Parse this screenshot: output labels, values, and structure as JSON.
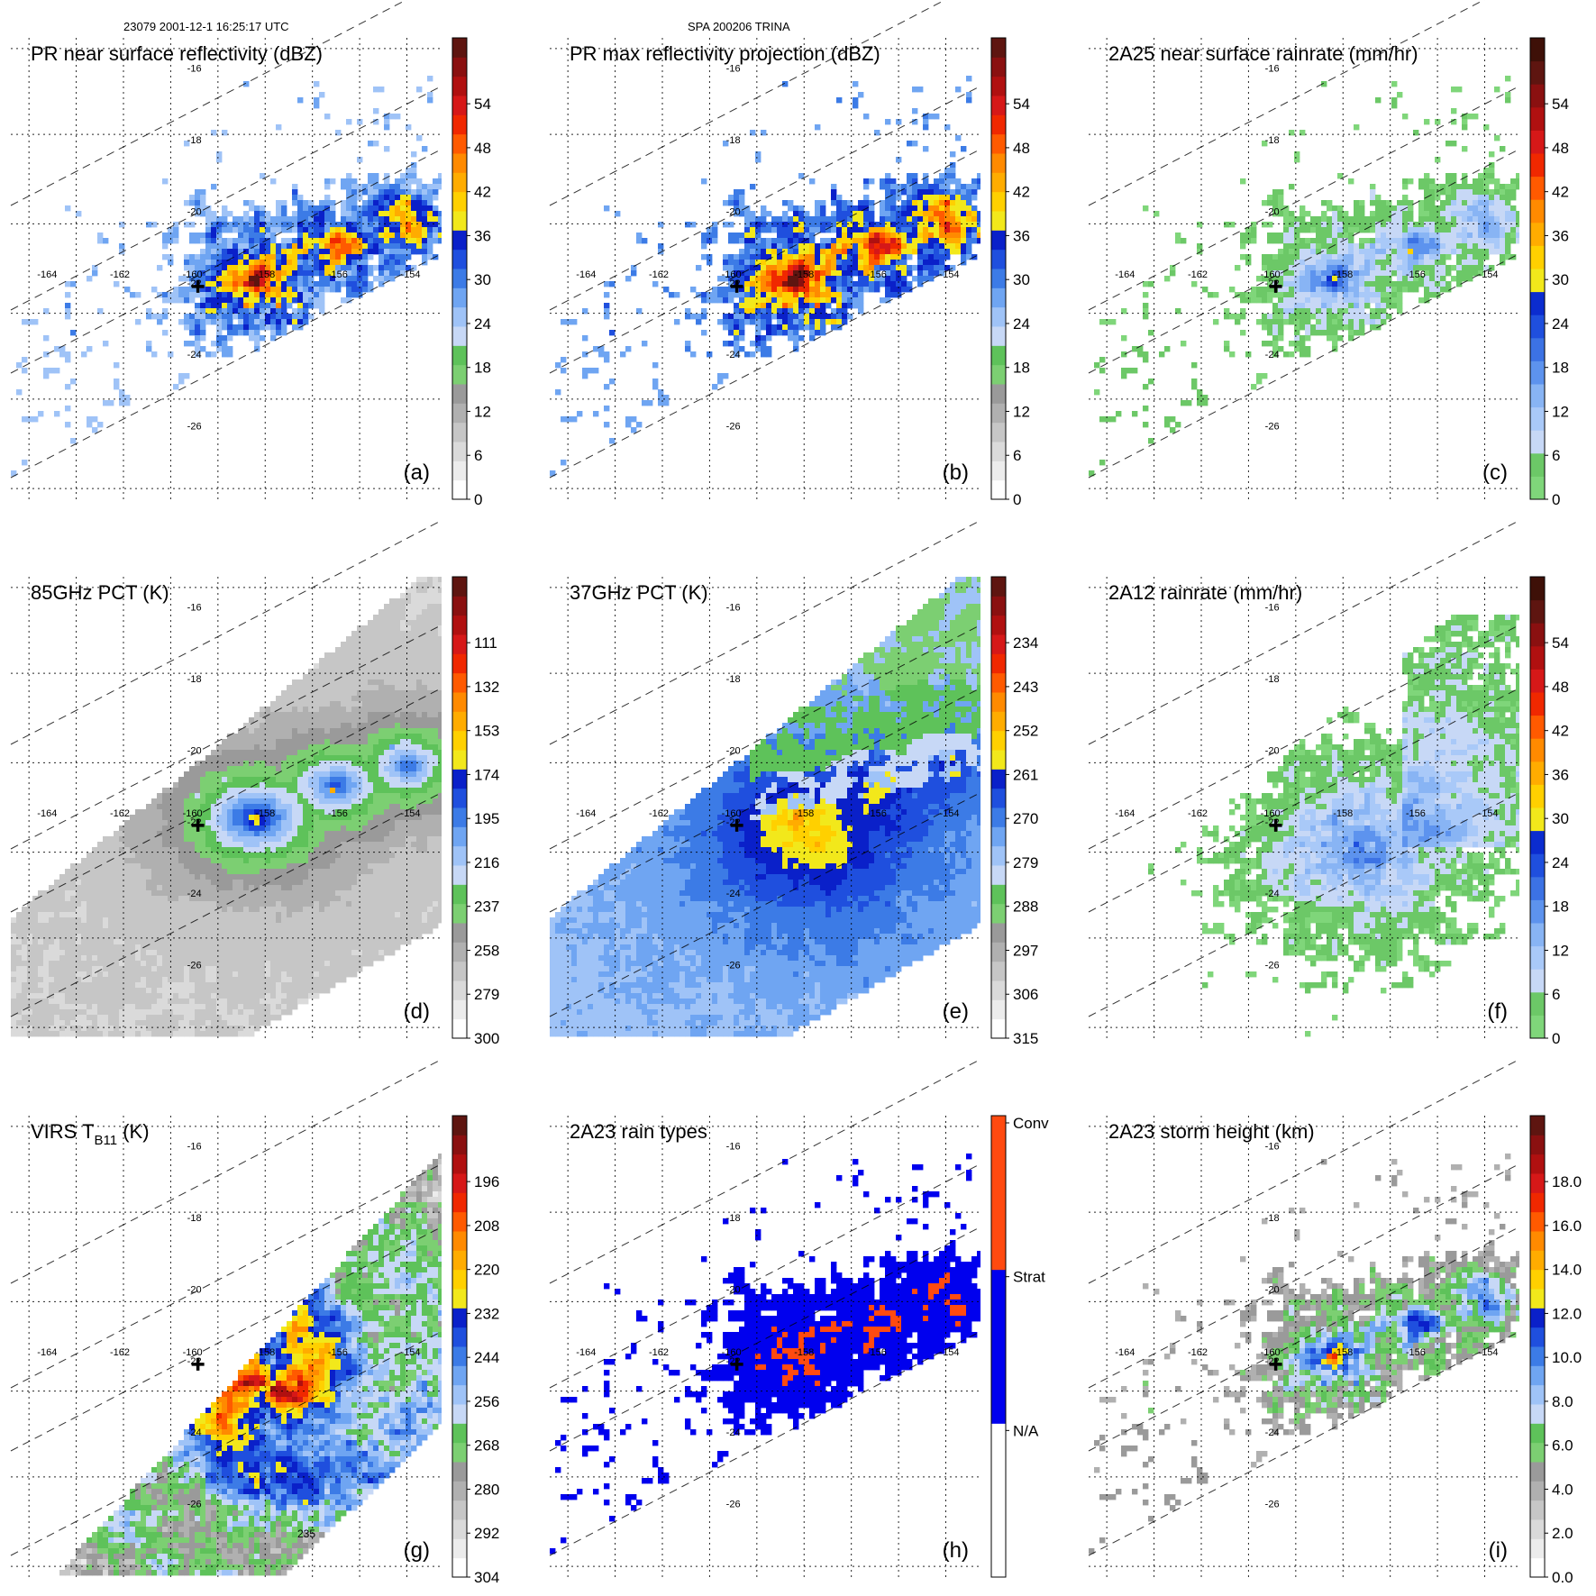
{
  "header": {
    "left": "23079 2001-12-1 16:25:17 UTC",
    "center": "SPA 200206 TRINA"
  },
  "colors": {
    "grid": "#000000",
    "marker": "#000000",
    "contour": "#000000"
  },
  "chart_data": [
    {
      "type": "heatmap",
      "title": "PR near surface reflectivity (dBZ)",
      "panel_label": "(a)",
      "swath": "pr",
      "field": "reflectivity",
      "colorbar": {
        "colors": [
          "#ffffff",
          "#ececec",
          "#dadada",
          "#c6c6c6",
          "#b0b0b0",
          "#9a9a9a",
          "#7ccf72",
          "#5ec25a",
          "#c7d8f6",
          "#9fc3f7",
          "#6fa5f2",
          "#3c7be6",
          "#1f4fde",
          "#0a20c9",
          "#f2e81b",
          "#ffd000",
          "#ffac00",
          "#ff8a00",
          "#ff5a00",
          "#f02800",
          "#d61818",
          "#b01010",
          "#8a1010",
          "#5e1510"
        ],
        "tick_labels": [
          "0",
          "6",
          "12",
          "18",
          "24",
          "30",
          "36",
          "42",
          "48",
          "54"
        ]
      }
    },
    {
      "type": "heatmap",
      "title": "PR max reflectivity projection (dBZ)",
      "panel_label": "(b)",
      "swath": "pr",
      "field": "reflectivity_max",
      "colorbar": {
        "colors": [
          "#ffffff",
          "#ececec",
          "#dadada",
          "#c6c6c6",
          "#b0b0b0",
          "#9a9a9a",
          "#7ccf72",
          "#5ec25a",
          "#c7d8f6",
          "#9fc3f7",
          "#6fa5f2",
          "#3c7be6",
          "#1f4fde",
          "#0a20c9",
          "#f2e81b",
          "#ffd000",
          "#ffac00",
          "#ff8a00",
          "#ff5a00",
          "#f02800",
          "#d61818",
          "#b01010",
          "#8a1010",
          "#5e1510"
        ],
        "tick_labels": [
          "0",
          "6",
          "12",
          "18",
          "24",
          "30",
          "36",
          "42",
          "48",
          "54"
        ]
      }
    },
    {
      "type": "heatmap",
      "title": "2A25 near surface rainrate (mm/hr)",
      "panel_label": "(c)",
      "swath": "pr",
      "field": "rainrate",
      "colorbar": {
        "colors": [
          "#7fd67a",
          "#6cc867",
          "#c7d8f6",
          "#a9c9f8",
          "#88b4f4",
          "#5d93ee",
          "#3c72e4",
          "#1f4fde",
          "#0b2ccf",
          "#f2e81b",
          "#ffd000",
          "#ffac00",
          "#ff8a00",
          "#ff5a00",
          "#f02800",
          "#d61818",
          "#b01010",
          "#8a1010",
          "#5e1510",
          "#3e1008"
        ],
        "tick_labels": [
          "0",
          "6",
          "12",
          "18",
          "24",
          "30",
          "36",
          "42",
          "48",
          "54"
        ]
      }
    },
    {
      "type": "heatmap",
      "title": "85GHz PCT (K)",
      "panel_label": "(d)",
      "swath": "tmi",
      "field": "pct85",
      "colorbar": {
        "colors": [
          "#ffffff",
          "#ececec",
          "#dadada",
          "#c6c6c6",
          "#b0b0b0",
          "#9a9a9a",
          "#7ccf72",
          "#5ec25a",
          "#c7d8f6",
          "#9fc3f7",
          "#6fa5f2",
          "#3c7be6",
          "#1f4fde",
          "#0a20c9",
          "#f2e81b",
          "#ffd000",
          "#ffac00",
          "#ff8a00",
          "#ff5a00",
          "#f02800",
          "#d61818",
          "#b01010",
          "#8a1010",
          "#5e1510"
        ],
        "tick_labels": [
          "300",
          "279",
          "258",
          "237",
          "216",
          "195",
          "174",
          "153",
          "132",
          "111"
        ]
      }
    },
    {
      "type": "heatmap",
      "title": "37GHz PCT (K)",
      "panel_label": "(e)",
      "swath": "tmi",
      "field": "pct37",
      "colorbar": {
        "colors": [
          "#ffffff",
          "#ececec",
          "#dadada",
          "#c6c6c6",
          "#b0b0b0",
          "#9a9a9a",
          "#7ccf72",
          "#5ec25a",
          "#c7d8f6",
          "#9fc3f7",
          "#6fa5f2",
          "#3c7be6",
          "#1f4fde",
          "#0a20c9",
          "#f2e81b",
          "#ffd000",
          "#ffac00",
          "#ff8a00",
          "#ff5a00",
          "#f02800",
          "#d61818",
          "#b01010",
          "#8a1010",
          "#5e1510"
        ],
        "tick_labels": [
          "315",
          "306",
          "297",
          "288",
          "279",
          "270",
          "261",
          "252",
          "243",
          "234"
        ]
      }
    },
    {
      "type": "heatmap",
      "title": "2A12 rainrate (mm/hr)",
      "panel_label": "(f)",
      "swath": "tmi",
      "field": "rainrate_tmi",
      "colorbar": {
        "colors": [
          "#7fd67a",
          "#6cc867",
          "#c7d8f6",
          "#a9c9f8",
          "#88b4f4",
          "#5d93ee",
          "#3c72e4",
          "#1f4fde",
          "#0b2ccf",
          "#f2e81b",
          "#ffd000",
          "#ffac00",
          "#ff8a00",
          "#ff5a00",
          "#f02800",
          "#d61818",
          "#b01010",
          "#8a1010",
          "#5e1510",
          "#3e1008"
        ],
        "tick_labels": [
          "0",
          "6",
          "12",
          "18",
          "24",
          "30",
          "36",
          "42",
          "48",
          "54"
        ]
      }
    },
    {
      "type": "heatmap",
      "title": "VIRS T",
      "title_sub": "B11",
      "title_suffix": " (K)",
      "panel_label": "(g)",
      "swath": "virs",
      "field": "tb11",
      "contour_label": "235",
      "colorbar": {
        "colors": [
          "#ffffff",
          "#ececec",
          "#dadada",
          "#c6c6c6",
          "#b0b0b0",
          "#9a9a9a",
          "#7ccf72",
          "#5ec25a",
          "#c7d8f6",
          "#9fc3f7",
          "#6fa5f2",
          "#3c7be6",
          "#1f4fde",
          "#0a20c9",
          "#f2e81b",
          "#ffd000",
          "#ffac00",
          "#ff8a00",
          "#ff5a00",
          "#f02800",
          "#d61818",
          "#b01010",
          "#8a1010",
          "#5e1510"
        ],
        "tick_labels": [
          "304",
          "292",
          "280",
          "268",
          "256",
          "244",
          "232",
          "220",
          "208",
          "196"
        ]
      }
    },
    {
      "type": "heatmap",
      "title": "2A23 rain types",
      "panel_label": "(h)",
      "swath": "pr",
      "field": "raintype",
      "colorbar": {
        "colors": [
          "#ffffff",
          "#0000ee",
          "#ff4a10"
        ],
        "tick_labels": [
          "N/A",
          "Strat",
          "Conv"
        ],
        "categorical": true
      }
    },
    {
      "type": "heatmap",
      "title": "2A23 storm height (km)",
      "panel_label": "(i)",
      "swath": "pr",
      "field": "height",
      "colorbar": {
        "colors": [
          "#ffffff",
          "#ececec",
          "#dadada",
          "#c6c6c6",
          "#b0b0b0",
          "#9a9a9a",
          "#7ccf72",
          "#5ec25a",
          "#c7d8f6",
          "#9fc3f7",
          "#6fa5f2",
          "#3c7be6",
          "#1f4fde",
          "#0a20c9",
          "#f2e81b",
          "#ffd000",
          "#ffac00",
          "#ff8a00",
          "#ff5a00",
          "#f02800",
          "#d61818",
          "#b01010",
          "#8a1010",
          "#5e1510"
        ],
        "tick_labels": [
          "0.0",
          "2.0",
          "4.0",
          "6.0",
          "8.0",
          "10.0",
          "12.0",
          "14.0",
          "16.0",
          "18.0"
        ]
      }
    }
  ],
  "map": {
    "lon_labels": [
      "-164",
      "-162",
      "-160",
      "-158",
      "-156",
      "-154"
    ],
    "lat_labels": [
      "-16",
      "-18",
      "-20",
      "-22",
      "-24",
      "-26"
    ],
    "lon_range": [
      -165.0,
      -152.6
    ],
    "lat_range": [
      -14.9,
      -27.8
    ],
    "lon_label_lat": -21.7,
    "lat_label_lon": -159.95,
    "storm_center": {
      "lon": -159.95,
      "lat": -21.8
    }
  }
}
